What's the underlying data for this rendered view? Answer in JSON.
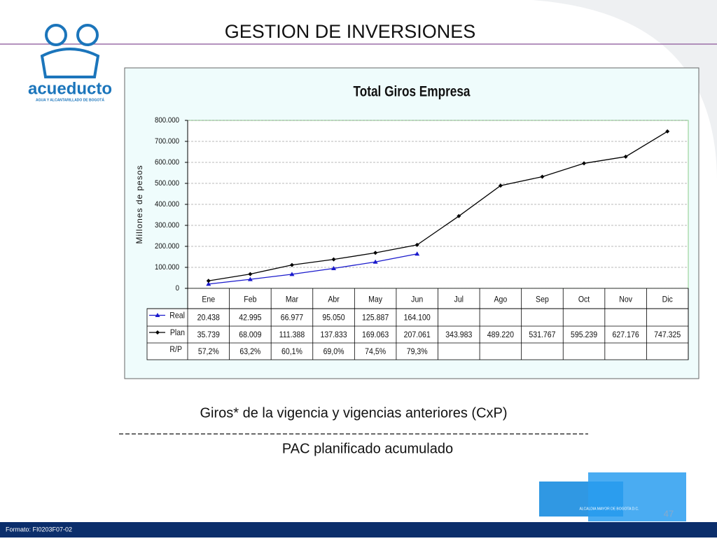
{
  "title": "GESTION DE INVERSIONES",
  "logo": {
    "name": "acueducto",
    "tagline": "AGUA Y ALCANTARILLADO DE BOGOTÁ"
  },
  "chart_data": {
    "type": "line",
    "title": "Total Giros Empresa",
    "y_label": "Millones de pesos",
    "categories": [
      "Ene",
      "Feb",
      "Mar",
      "Abr",
      "May",
      "Jun",
      "Jul",
      "Ago",
      "Sep",
      "Oct",
      "Nov",
      "Dic"
    ],
    "series": [
      {
        "name": "Real",
        "color": "#1a1acc",
        "marker": "triangle",
        "values": [
          20438,
          42995,
          66977,
          95050,
          125887,
          164100,
          null,
          null,
          null,
          null,
          null,
          null
        ],
        "value_labels": [
          "20.438",
          "42.995",
          "66.977",
          "95.050",
          "125.887",
          "164.100",
          null,
          null,
          null,
          null,
          null,
          null
        ]
      },
      {
        "name": "Plan",
        "color": "#000000",
        "marker": "diamond",
        "values": [
          35739,
          68009,
          111388,
          137833,
          169063,
          207061,
          343983,
          489220,
          531767,
          595239,
          627176,
          747325
        ],
        "value_labels": [
          "35.739",
          "68.009",
          "111.388",
          "137.833",
          "169.063",
          "207.061",
          "343.983",
          "489.220",
          "531.767",
          "595.239",
          "627.176",
          "747.325"
        ]
      }
    ],
    "ratio": {
      "name": "R/P",
      "labels": [
        "57,2%",
        "63,2%",
        "60,1%",
        "69,0%",
        "74,5%",
        "79,3%"
      ]
    },
    "ylim": [
      0,
      800000
    ],
    "yticks": [
      0,
      {
        "value": 100000,
        "label": "100.000"
      },
      {
        "value": 200000,
        "label": "200.000"
      },
      {
        "value": 300000,
        "label": "300.000"
      },
      {
        "value": 400000,
        "label": "400.000"
      },
      {
        "value": 500000,
        "label": "500.000"
      },
      {
        "value": 600000,
        "label": "600.000"
      },
      {
        "value": 700000,
        "label": "700.000"
      },
      {
        "value": 800000,
        "label": "800.000"
      }
    ],
    "grid": true
  },
  "notes": {
    "numerator": "Giros* de la vigencia y vigencias anteriores (CxP)",
    "denominator": "PAC planificado acumulado"
  },
  "badge": "ALCALDIA MAYOR DE BOGOTA D.C.",
  "page_number": "47",
  "footer": "Formato: FI0203F07-02"
}
